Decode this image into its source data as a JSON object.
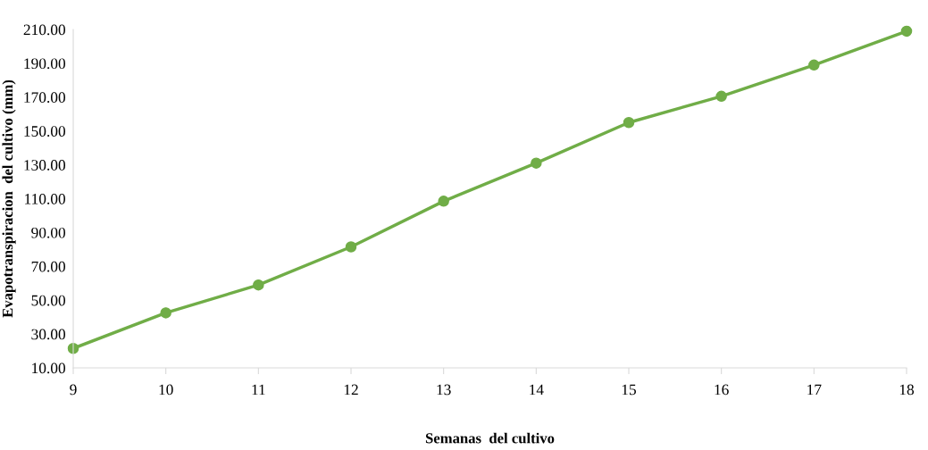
{
  "chart_data": {
    "type": "line",
    "xlabel": "Semanas  del cultivo",
    "ylabel": "Evapotranspiracion  del cultivo (mm)",
    "x": [
      9,
      10,
      11,
      12,
      13,
      14,
      15,
      16,
      17,
      18
    ],
    "series": [
      {
        "color": "#70ad47",
        "values": [
          21.5,
          42.5,
          59,
          81.5,
          108.5,
          131,
          155,
          170.5,
          189,
          209
        ]
      }
    ],
    "xlim": [
      9,
      18
    ],
    "xticks": [
      9,
      10,
      11,
      12,
      13,
      14,
      15,
      16,
      17,
      18
    ],
    "ylim": [
      10,
      210
    ],
    "yticks": [
      {
        "value": 10,
        "label": "10.00"
      },
      {
        "value": 30,
        "label": "30.00"
      },
      {
        "value": 50,
        "label": "50.00"
      },
      {
        "value": 70,
        "label": "70.00"
      },
      {
        "value": 90,
        "label": "90.00"
      },
      {
        "value": 110,
        "label": "110.00"
      },
      {
        "value": 130,
        "label": "130.00"
      },
      {
        "value": 150,
        "label": "150.00"
      },
      {
        "value": 170,
        "label": "170.00"
      },
      {
        "value": 190,
        "label": "190.00"
      },
      {
        "value": 210,
        "label": "210.00"
      }
    ],
    "marker": "circle",
    "line_style": "solid",
    "grid": false,
    "legend": false
  }
}
